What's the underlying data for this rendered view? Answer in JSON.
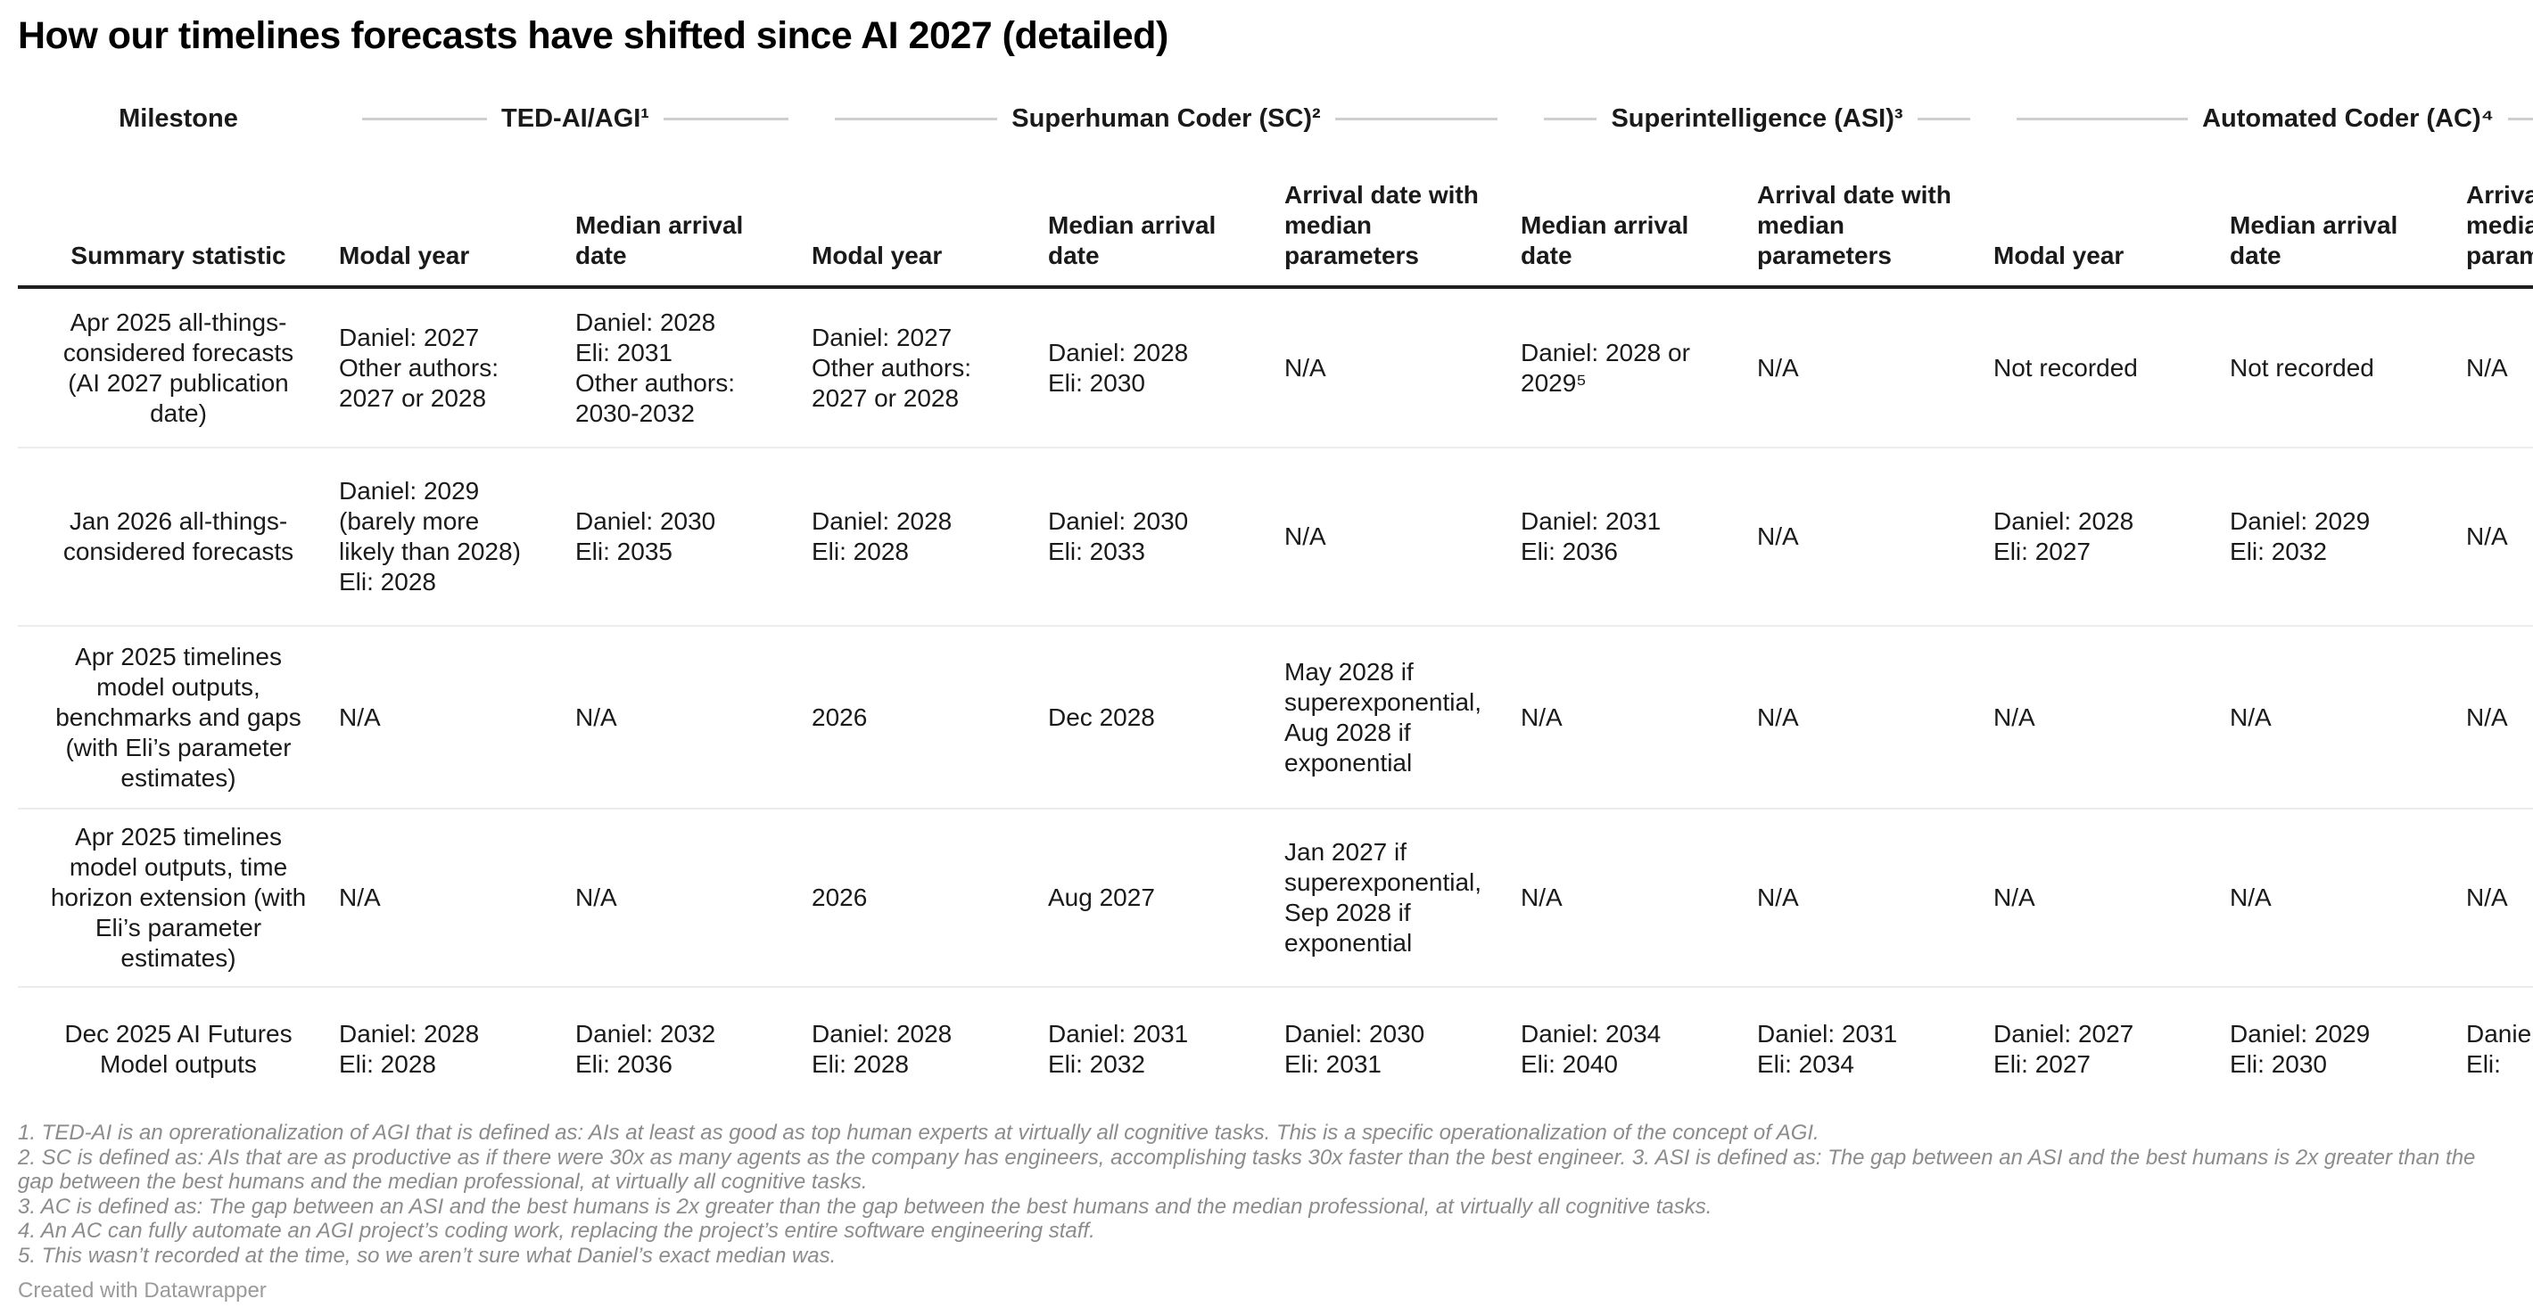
{
  "chart_data": {
    "type": "table",
    "title": "How our timelines forecasts have shifted since AI 2027 (detailed)",
    "column_groups": [
      {
        "label": "Milestone",
        "span": 1,
        "rules": false
      },
      {
        "label": "TED-AI/AGI¹",
        "span": 2,
        "rules": true
      },
      {
        "label": "Superhuman Coder (SC)²",
        "span": 3,
        "rules": true
      },
      {
        "label": "Superintelligence (ASI)³",
        "span": 2,
        "rules": true
      },
      {
        "label": "Automated Coder (AC)⁴",
        "span": 3,
        "rules": true
      }
    ],
    "columns": [
      "Summary statistic",
      "Modal year",
      "Median arrival date",
      "Modal year",
      "Median arrival date",
      "Arrival date with median parameters",
      "Median arrival date",
      "Arrival date with median parameters",
      "Modal year",
      "Median arrival date",
      "Arrival date with median parameters"
    ],
    "rows": [
      {
        "milestone": "Apr 2025 all-things-considered forecasts (AI 2027 publication date)",
        "cells": [
          "Daniel: 2027\nOther authors: 2027 or 2028",
          "Daniel: 2028\nEli: 2031\nOther authors: 2030-2032",
          "Daniel: 2027\nOther authors: 2027 or 2028",
          "Daniel: 2028\nEli: 2030",
          "N/A",
          "Daniel: 2028 or 2029⁵",
          "N/A",
          "Not recorded",
          "Not recorded",
          "N/A"
        ]
      },
      {
        "milestone": "Jan 2026 all-things-considered forecasts",
        "cells": [
          "Daniel: 2029 (barely more likely than 2028)\nEli: 2028",
          "Daniel: 2030\nEli: 2035",
          "Daniel: 2028\nEli: 2028",
          "Daniel: 2030\nEli: 2033",
          "N/A",
          "Daniel: 2031\nEli: 2036",
          "N/A",
          "Daniel: 2028\nEli: 2027",
          "Daniel: 2029\nEli: 2032",
          "N/A"
        ]
      },
      {
        "milestone": "Apr 2025 timelines model outputs, benchmarks and gaps (with Eli’s parameter estimates)",
        "cells": [
          "N/A",
          "N/A",
          "2026",
          "Dec 2028",
          "May 2028 if superexponential, Aug 2028 if exponential",
          "N/A",
          "N/A",
          "N/A",
          "N/A",
          "N/A"
        ]
      },
      {
        "milestone": "Apr 2025 timelines model outputs, time horizon extension (with Eli’s parameter estimates)",
        "cells": [
          "N/A",
          "N/A",
          "2026",
          "Aug 2027",
          "Jan 2027 if superexponential, Sep 2028 if exponential",
          "N/A",
          "N/A",
          "N/A",
          "N/A",
          "N/A"
        ]
      },
      {
        "milestone": "Dec 2025 AI Futures Model outputs",
        "cells": [
          "Daniel: 2028\nEli: 2028",
          "Daniel: 2032\nEli: 2036",
          "Daniel: 2028\nEli: 2028",
          "Daniel: 2031\nEli: 2032",
          "Daniel: 2030\nEli: 2031",
          "Daniel: 2034\nEli: 2040",
          "Daniel: 2031\nEli: 2034",
          "Daniel: 2027\nEli: 2027",
          "Daniel: 2029\nEli: 2030",
          "Daniel:\nEli:"
        ]
      }
    ],
    "footnotes": [
      "1. TED-AI is an oprerationalization of AGI that is defined as: AIs at least as good as top human experts at virtually all cognitive tasks. This is a specific operationalization of the concept of AGI.",
      "2. SC is defined as: AIs that are as productive as if there were 30x as many agents as the company has engineers, accomplishing tasks 30x faster than the best engineer. 3. ASI is defined as: The gap between an ASI and the best humans is 2x greater than the gap between the best humans and the median professional, at virtually all cognitive tasks.",
      "3. AC is defined as: The gap between an ASI and the best humans is 2x greater than the gap between the best humans and the median professional, at virtually all cognitive tasks.",
      "4. An AC can fully automate an AGI project’s coding work, replacing the project’s entire software engineering staff.",
      "5. This wasn’t recorded at the time, so we aren’t sure what Daniel’s exact median was."
    ],
    "attribution": "Created with Datawrapper",
    "layout_hints": {
      "grid": "horizontal-rules-only",
      "legend_position": "none"
    },
    "colors": {
      "header_rule": "#1f1f1f",
      "group_rule": "#cfcfcf",
      "row_divider": "#ececec",
      "footnote_text": "#8c8c8c"
    }
  }
}
